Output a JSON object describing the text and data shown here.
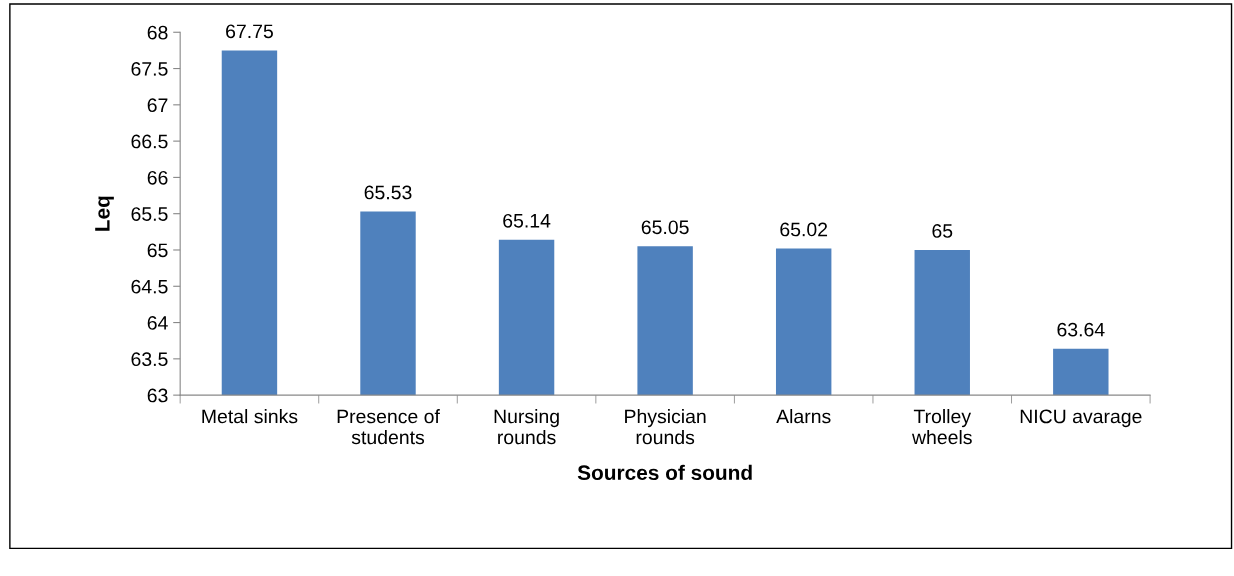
{
  "chart_data": {
    "type": "bar",
    "xlabel": "Sources of sound",
    "ylabel": "Leq",
    "categories": [
      "Metal sinks",
      "Presence of\nstudents",
      "Nursing\nrounds",
      "Physician\nrounds",
      "Alarns",
      "Trolley\nwheels",
      "NICU avarage"
    ],
    "values": [
      67.75,
      65.53,
      65.14,
      65.05,
      65.02,
      65,
      63.64
    ],
    "color": "#4f81bd",
    "ylim": [
      63,
      68
    ],
    "yticks": [
      63,
      63.5,
      64,
      64.5,
      65,
      65.5,
      66,
      66.5,
      67,
      67.5,
      68
    ],
    "data_labels": true,
    "grid": false
  }
}
